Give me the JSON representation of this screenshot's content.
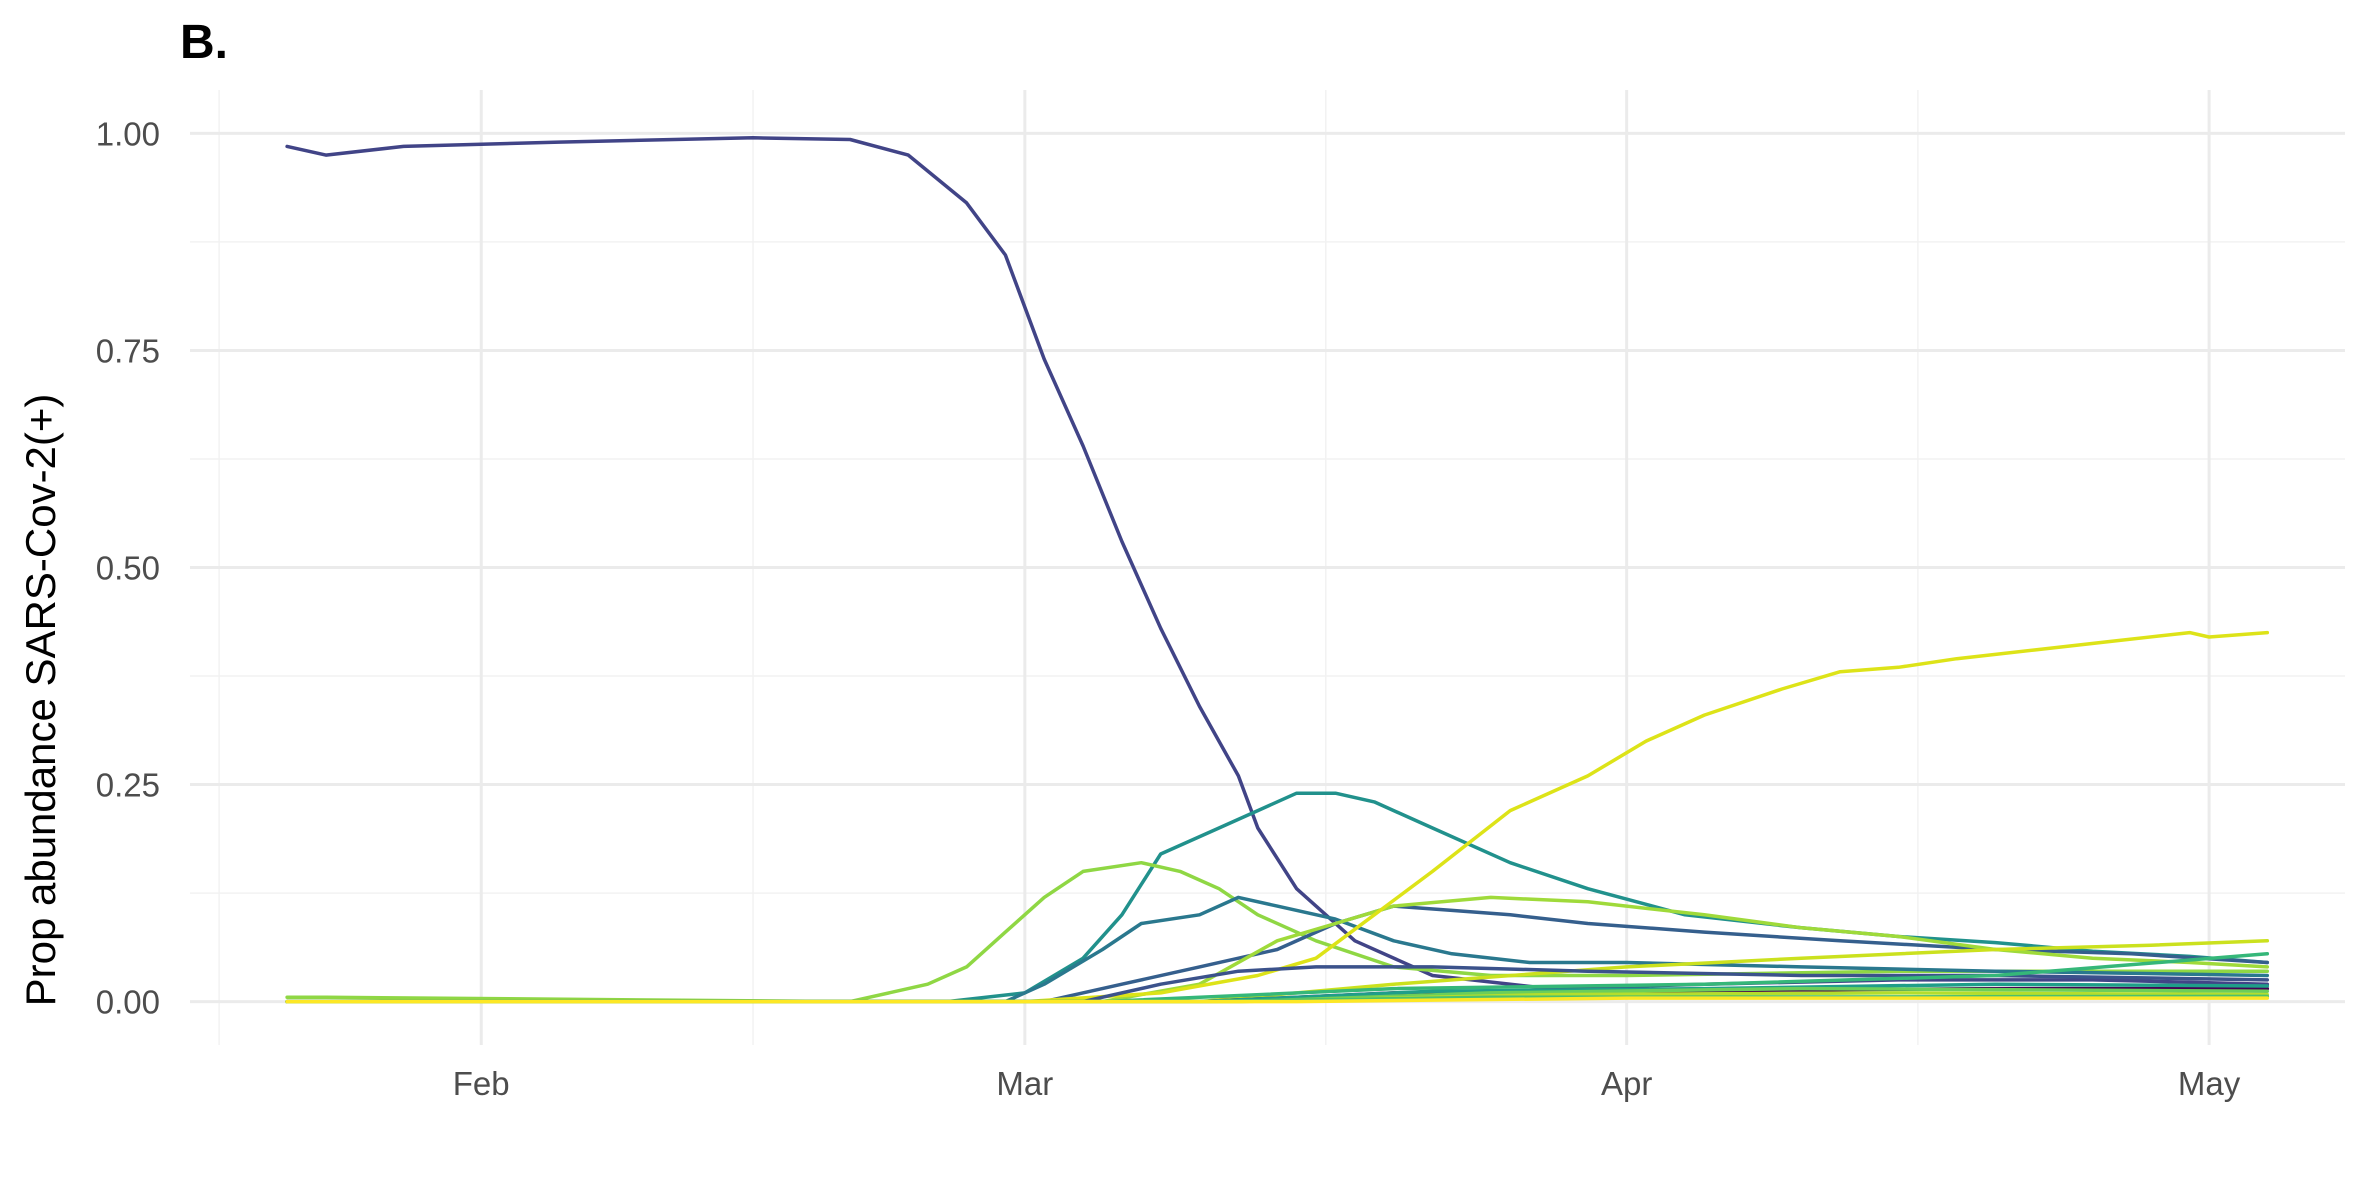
{
  "panel_label": "B.",
  "chart_data": {
    "type": "line",
    "title": "",
    "xlabel": "",
    "ylabel": "Prop abundance SARS-Cov-2(+)",
    "x_ticks": [
      "Feb",
      "Mar",
      "Apr",
      "May"
    ],
    "x_tick_dates": [
      "2021-02-01",
      "2021-03-01",
      "2021-04-01",
      "2021-05-01"
    ],
    "y_ticks": [
      "0.00",
      "0.25",
      "0.50",
      "0.75",
      "1.00"
    ],
    "ylim": [
      -0.05,
      1.05
    ],
    "xlim": [
      "2021-01-17",
      "2021-05-08"
    ],
    "grid": true,
    "legend": "none",
    "series": [
      {
        "color": "#414487",
        "points": [
          [
            "2021-01-22",
            0.985
          ],
          [
            "2021-01-24",
            0.975
          ],
          [
            "2021-01-28",
            0.985
          ],
          [
            "2021-02-05",
            0.99
          ],
          [
            "2021-02-15",
            0.995
          ],
          [
            "2021-02-20",
            0.993
          ],
          [
            "2021-02-23",
            0.975
          ],
          [
            "2021-02-26",
            0.92
          ],
          [
            "2021-02-28",
            0.86
          ],
          [
            "2021-03-02",
            0.74
          ],
          [
            "2021-03-04",
            0.64
          ],
          [
            "2021-03-06",
            0.53
          ],
          [
            "2021-03-08",
            0.43
          ],
          [
            "2021-03-10",
            0.34
          ],
          [
            "2021-03-12",
            0.26
          ],
          [
            "2021-03-13",
            0.2
          ],
          [
            "2021-03-15",
            0.13
          ],
          [
            "2021-03-18",
            0.07
          ],
          [
            "2021-03-22",
            0.03
          ],
          [
            "2021-03-28",
            0.015
          ],
          [
            "2021-04-05",
            0.02
          ],
          [
            "2021-04-15",
            0.025
          ],
          [
            "2021-04-25",
            0.025
          ],
          [
            "2021-05-04",
            0.02
          ]
        ]
      },
      {
        "color": "#21918C",
        "points": [
          [
            "2021-01-22",
            0.0
          ],
          [
            "2021-02-25",
            0.0
          ],
          [
            "2021-03-01",
            0.01
          ],
          [
            "2021-03-04",
            0.05
          ],
          [
            "2021-03-06",
            0.1
          ],
          [
            "2021-03-08",
            0.17
          ],
          [
            "2021-03-11",
            0.2
          ],
          [
            "2021-03-13",
            0.22
          ],
          [
            "2021-03-15",
            0.24
          ],
          [
            "2021-03-17",
            0.24
          ],
          [
            "2021-03-19",
            0.23
          ],
          [
            "2021-03-22",
            0.2
          ],
          [
            "2021-03-26",
            0.16
          ],
          [
            "2021-03-30",
            0.13
          ],
          [
            "2021-04-04",
            0.1
          ],
          [
            "2021-04-10",
            0.085
          ],
          [
            "2021-04-15",
            0.075
          ],
          [
            "2021-04-20",
            0.068
          ],
          [
            "2021-04-25",
            0.058
          ],
          [
            "2021-04-30",
            0.052
          ],
          [
            "2021-05-04",
            0.045
          ]
        ]
      },
      {
        "color": "#8FD744",
        "points": [
          [
            "2021-01-22",
            0.005
          ],
          [
            "2021-01-24",
            0.005
          ],
          [
            "2021-02-20",
            0.0
          ],
          [
            "2021-02-24",
            0.02
          ],
          [
            "2021-02-26",
            0.04
          ],
          [
            "2021-02-28",
            0.08
          ],
          [
            "2021-03-02",
            0.12
          ],
          [
            "2021-03-04",
            0.15
          ],
          [
            "2021-03-07",
            0.16
          ],
          [
            "2021-03-09",
            0.15
          ],
          [
            "2021-03-11",
            0.13
          ],
          [
            "2021-03-13",
            0.1
          ],
          [
            "2021-03-16",
            0.07
          ],
          [
            "2021-03-20",
            0.04
          ],
          [
            "2021-03-25",
            0.03
          ],
          [
            "2021-04-01",
            0.03
          ],
          [
            "2021-04-15",
            0.035
          ],
          [
            "2021-05-04",
            0.035
          ]
        ]
      },
      {
        "color": "#2A788E",
        "points": [
          [
            "2021-01-22",
            0.0
          ],
          [
            "2021-02-28",
            0.0
          ],
          [
            "2021-03-02",
            0.02
          ],
          [
            "2021-03-05",
            0.06
          ],
          [
            "2021-03-07",
            0.09
          ],
          [
            "2021-03-10",
            0.1
          ],
          [
            "2021-03-12",
            0.12
          ],
          [
            "2021-03-14",
            0.11
          ],
          [
            "2021-03-17",
            0.095
          ],
          [
            "2021-03-20",
            0.07
          ],
          [
            "2021-03-23",
            0.055
          ],
          [
            "2021-03-27",
            0.045
          ],
          [
            "2021-04-01",
            0.045
          ],
          [
            "2021-04-10",
            0.04
          ],
          [
            "2021-04-20",
            0.035
          ],
          [
            "2021-05-04",
            0.03
          ]
        ]
      },
      {
        "color": "#355F8D",
        "points": [
          [
            "2021-01-22",
            0.0
          ],
          [
            "2021-03-02",
            0.0
          ],
          [
            "2021-03-06",
            0.02
          ],
          [
            "2021-03-10",
            0.04
          ],
          [
            "2021-03-14",
            0.06
          ],
          [
            "2021-03-17",
            0.09
          ],
          [
            "2021-03-20",
            0.11
          ],
          [
            "2021-03-23",
            0.105
          ],
          [
            "2021-03-26",
            0.1
          ],
          [
            "2021-03-30",
            0.09
          ],
          [
            "2021-04-05",
            0.08
          ],
          [
            "2021-04-12",
            0.07
          ],
          [
            "2021-04-20",
            0.06
          ],
          [
            "2021-04-27",
            0.055
          ],
          [
            "2021-05-04",
            0.045
          ]
        ]
      },
      {
        "color": "#9FDA3A",
        "points": [
          [
            "2021-01-22",
            0.0
          ],
          [
            "2021-03-05",
            0.0
          ],
          [
            "2021-03-10",
            0.02
          ],
          [
            "2021-03-14",
            0.07
          ],
          [
            "2021-03-17",
            0.09
          ],
          [
            "2021-03-20",
            0.11
          ],
          [
            "2021-03-25",
            0.12
          ],
          [
            "2021-03-30",
            0.115
          ],
          [
            "2021-04-05",
            0.1
          ],
          [
            "2021-04-10",
            0.085
          ],
          [
            "2021-04-15",
            0.075
          ],
          [
            "2021-04-20",
            0.06
          ],
          [
            "2021-04-25",
            0.05
          ],
          [
            "2021-04-30",
            0.045
          ],
          [
            "2021-05-04",
            0.04
          ]
        ]
      },
      {
        "color": "#DDE318",
        "points": [
          [
            "2021-01-22",
            0.0
          ],
          [
            "2021-03-01",
            0.0
          ],
          [
            "2021-03-08",
            0.01
          ],
          [
            "2021-03-13",
            0.03
          ],
          [
            "2021-03-16",
            0.05
          ],
          [
            "2021-03-19",
            0.1
          ],
          [
            "2021-03-22",
            0.15
          ],
          [
            "2021-03-26",
            0.22
          ],
          [
            "2021-03-30",
            0.26
          ],
          [
            "2021-04-02",
            0.3
          ],
          [
            "2021-04-05",
            0.33
          ],
          [
            "2021-04-09",
            0.36
          ],
          [
            "2021-04-12",
            0.38
          ],
          [
            "2021-04-15",
            0.385
          ],
          [
            "2021-04-18",
            0.395
          ],
          [
            "2021-04-22",
            0.405
          ],
          [
            "2021-04-26",
            0.415
          ],
          [
            "2021-04-30",
            0.425
          ],
          [
            "2021-05-01",
            0.42
          ],
          [
            "2021-05-04",
            0.425
          ]
        ]
      },
      {
        "color": "#CBE11E",
        "points": [
          [
            "2021-01-22",
            0.0
          ],
          [
            "2021-03-10",
            0.0
          ],
          [
            "2021-03-20",
            0.02
          ],
          [
            "2021-04-01",
            0.04
          ],
          [
            "2021-04-10",
            0.05
          ],
          [
            "2021-04-20",
            0.06
          ],
          [
            "2021-04-28",
            0.065
          ],
          [
            "2021-05-04",
            0.07
          ]
        ]
      },
      {
        "color": "#3B528B",
        "points": [
          [
            "2021-01-22",
            0.0
          ],
          [
            "2021-03-04",
            0.0
          ],
          [
            "2021-03-08",
            0.02
          ],
          [
            "2021-03-12",
            0.035
          ],
          [
            "2021-03-16",
            0.04
          ],
          [
            "2021-03-22",
            0.04
          ],
          [
            "2021-03-30",
            0.035
          ],
          [
            "2021-04-10",
            0.03
          ],
          [
            "2021-04-20",
            0.03
          ],
          [
            "2021-05-04",
            0.025
          ]
        ]
      },
      {
        "color": "#440154",
        "points": [
          [
            "2021-01-22",
            0.0
          ],
          [
            "2021-03-10",
            0.0
          ],
          [
            "2021-03-20",
            0.01
          ],
          [
            "2021-04-01",
            0.012
          ],
          [
            "2021-04-20",
            0.015
          ],
          [
            "2021-05-04",
            0.015
          ]
        ]
      },
      {
        "color": "#1F9E89",
        "points": [
          [
            "2021-01-22",
            0.0
          ],
          [
            "2021-03-10",
            0.0
          ],
          [
            "2021-03-22",
            0.012
          ],
          [
            "2021-04-05",
            0.015
          ],
          [
            "2021-04-20",
            0.02
          ],
          [
            "2021-05-04",
            0.018
          ]
        ]
      },
      {
        "color": "#35B779",
        "points": [
          [
            "2021-01-22",
            0.0
          ],
          [
            "2021-03-05",
            0.0
          ],
          [
            "2021-03-20",
            0.015
          ],
          [
            "2021-04-05",
            0.02
          ],
          [
            "2021-04-20",
            0.03
          ],
          [
            "2021-05-04",
            0.055
          ]
        ]
      },
      {
        "color": "#6CCE59",
        "points": [
          [
            "2021-01-22",
            0.0
          ],
          [
            "2021-03-12",
            0.0
          ],
          [
            "2021-03-25",
            0.01
          ],
          [
            "2021-04-10",
            0.015
          ],
          [
            "2021-05-04",
            0.012
          ]
        ]
      },
      {
        "color": "#B4DE2C",
        "points": [
          [
            "2021-01-22",
            0.0
          ],
          [
            "2021-03-12",
            0.0
          ],
          [
            "2021-03-28",
            0.008
          ],
          [
            "2021-04-15",
            0.01
          ],
          [
            "2021-05-04",
            0.008
          ]
        ]
      },
      {
        "color": "#4AC16D",
        "points": [
          [
            "2021-01-22",
            0.0
          ],
          [
            "2021-03-10",
            0.0
          ],
          [
            "2021-03-25",
            0.005
          ],
          [
            "2021-05-04",
            0.006
          ]
        ]
      },
      {
        "color": "#FDE725",
        "points": [
          [
            "2021-01-22",
            0.0
          ],
          [
            "2021-03-15",
            0.0
          ],
          [
            "2021-04-01",
            0.004
          ],
          [
            "2021-05-04",
            0.004
          ]
        ]
      }
    ]
  }
}
